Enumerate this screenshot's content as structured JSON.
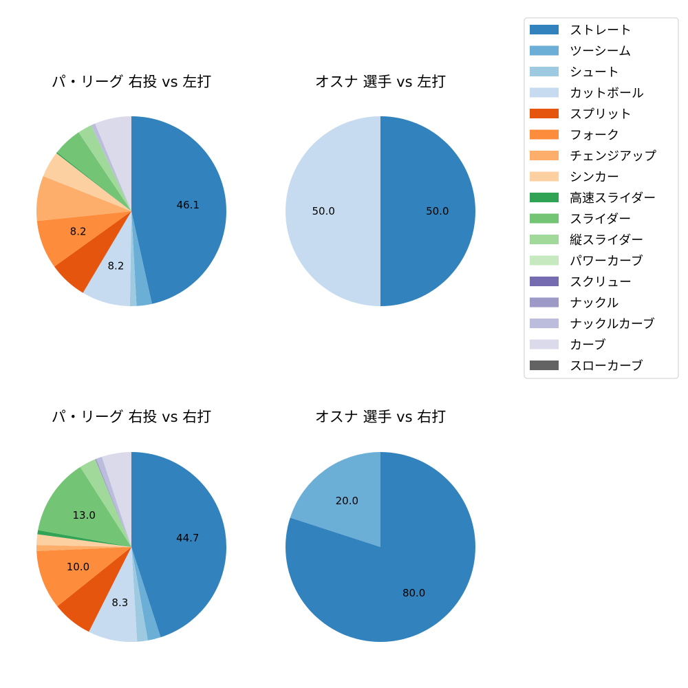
{
  "chart_data": [
    {
      "type": "pie",
      "title": "パ・リーグ 右投 vs 左打",
      "slices": [
        {
          "category": "ストレート",
          "value": 46.1,
          "label": "46.1"
        },
        {
          "category": "ツーシーム",
          "value": 2.6,
          "label": ""
        },
        {
          "category": "シュート",
          "value": 1.1,
          "label": ""
        },
        {
          "category": "カットボール",
          "value": 8.2,
          "label": "8.2"
        },
        {
          "category": "スプリット",
          "value": 6.5,
          "label": ""
        },
        {
          "category": "フォーク",
          "value": 8.2,
          "label": "8.2"
        },
        {
          "category": "チェンジアップ",
          "value": 7.6,
          "label": ""
        },
        {
          "category": "シンカー",
          "value": 4.4,
          "label": ""
        },
        {
          "category": "高速スライダー",
          "value": 0.2,
          "label": ""
        },
        {
          "category": "スライダー",
          "value": 4.9,
          "label": ""
        },
        {
          "category": "縦スライダー",
          "value": 2.4,
          "label": ""
        },
        {
          "category": "ナックルカーブ",
          "value": 0.7,
          "label": ""
        },
        {
          "category": "カーブ",
          "value": 6.2,
          "label": ""
        }
      ]
    },
    {
      "type": "pie",
      "title": "オスナ 選手 vs 左打",
      "slices": [
        {
          "category": "ストレート",
          "value": 50.0,
          "label": "50.0"
        },
        {
          "category": "カットボール",
          "value": 50.0,
          "label": "50.0"
        }
      ]
    },
    {
      "type": "pie",
      "title": "パ・リーグ 右投 vs 右打",
      "slices": [
        {
          "category": "ストレート",
          "value": 44.7,
          "label": "44.7"
        },
        {
          "category": "ツーシーム",
          "value": 2.2,
          "label": ""
        },
        {
          "category": "シュート",
          "value": 1.8,
          "label": ""
        },
        {
          "category": "カットボール",
          "value": 8.3,
          "label": "8.3"
        },
        {
          "category": "スプリット",
          "value": 6.8,
          "label": ""
        },
        {
          "category": "フォーク",
          "value": 10.0,
          "label": "10.0"
        },
        {
          "category": "チェンジアップ",
          "value": 1.0,
          "label": ""
        },
        {
          "category": "シンカー",
          "value": 1.8,
          "label": ""
        },
        {
          "category": "高速スライダー",
          "value": 0.7,
          "label": ""
        },
        {
          "category": "スライダー",
          "value": 13.0,
          "label": "13.0"
        },
        {
          "category": "縦スライダー",
          "value": 2.8,
          "label": ""
        },
        {
          "category": "ナックル",
          "value": 0.2,
          "label": ""
        },
        {
          "category": "ナックルカーブ",
          "value": 1.0,
          "label": ""
        },
        {
          "category": "カーブ",
          "value": 5.0,
          "label": ""
        }
      ]
    },
    {
      "type": "pie",
      "title": "オスナ 選手 vs 右打",
      "slices": [
        {
          "category": "ストレート",
          "value": 80.0,
          "label": "80.0"
        },
        {
          "category": "ツーシーム",
          "value": 20.0,
          "label": "20.0"
        }
      ]
    }
  ],
  "legend": {
    "placement": "top-right",
    "items": [
      {
        "name": "ストレート",
        "color": "#3182bd"
      },
      {
        "name": "ツーシーム",
        "color": "#6baed6"
      },
      {
        "name": "シュート",
        "color": "#9ecae1"
      },
      {
        "name": "カットボール",
        "color": "#c6dbef"
      },
      {
        "name": "スプリット",
        "color": "#e6550d"
      },
      {
        "name": "フォーク",
        "color": "#fd8d3c"
      },
      {
        "name": "チェンジアップ",
        "color": "#fdae6b"
      },
      {
        "name": "シンカー",
        "color": "#fdd0a2"
      },
      {
        "name": "高速スライダー",
        "color": "#31a354"
      },
      {
        "name": "スライダー",
        "color": "#74c476"
      },
      {
        "name": "縦スライダー",
        "color": "#a1d99b"
      },
      {
        "name": "パワーカーブ",
        "color": "#c7e9c0"
      },
      {
        "name": "スクリュー",
        "color": "#756bb1"
      },
      {
        "name": "ナックル",
        "color": "#9e9ac8"
      },
      {
        "name": "ナックルカーブ",
        "color": "#bcbddc"
      },
      {
        "name": "カーブ",
        "color": "#dadaeb"
      },
      {
        "name": "スローカーブ",
        "color": "#636363"
      }
    ]
  }
}
